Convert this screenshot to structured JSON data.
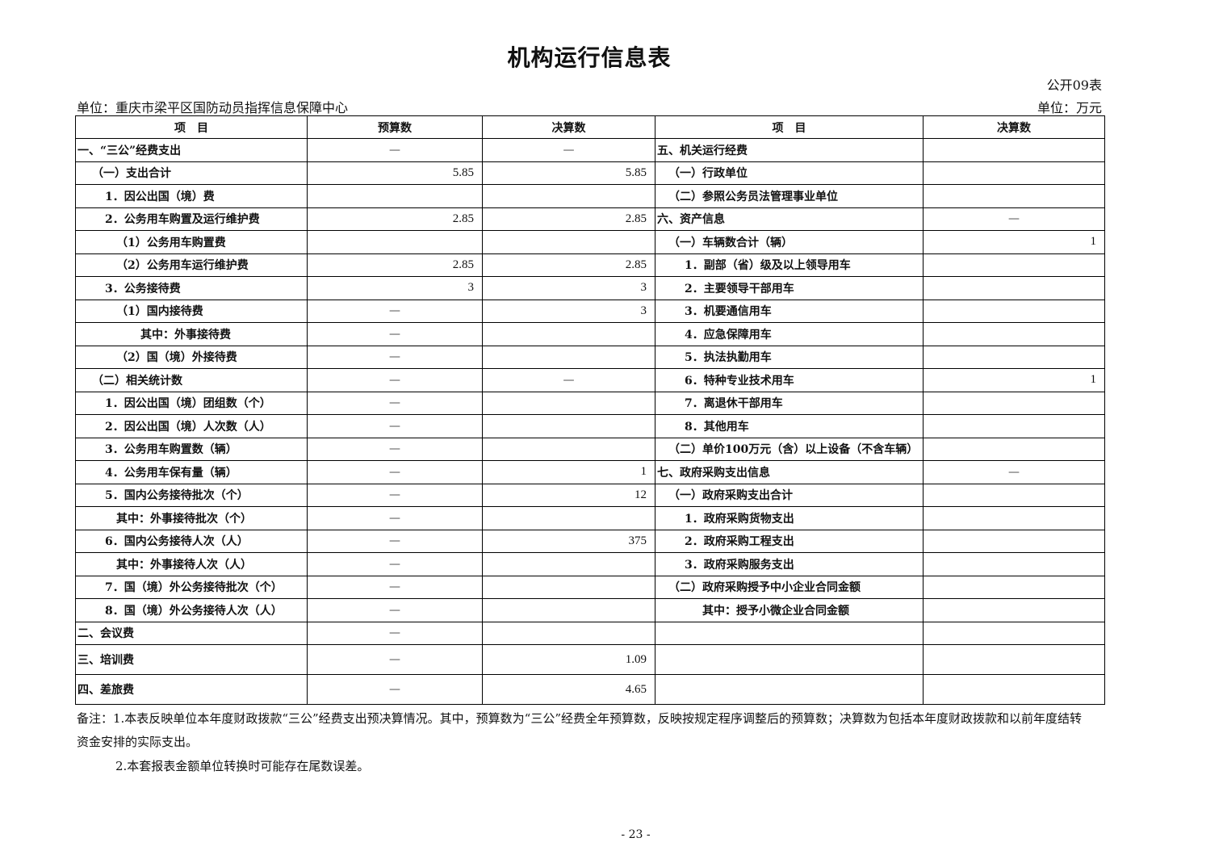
{
  "title": "机构运行信息表",
  "table_no": "公开09表",
  "unit_left": "单位：重庆市梁平区国防动员指挥信息保障中心",
  "unit_right": "单位：万元",
  "headers": [
    "项　目",
    "预算数",
    "决算数",
    "项　目",
    "决算数"
  ],
  "rows": [
    {
      "l": "一、“三公”经费支出",
      "ll": 0,
      "b": "—",
      "f": "—",
      "r": "五、机关运行经费",
      "rl": 0,
      "rf": ""
    },
    {
      "l": "（一）支出合计",
      "ll": 1,
      "b": "5.85",
      "f": "5.85",
      "r": "（一）行政单位",
      "rl": 1,
      "rf": ""
    },
    {
      "l": "1．因公出国（境）费",
      "ll": 2,
      "b": "",
      "f": "",
      "r": "（二）参照公务员法管理事业单位",
      "rl": 1,
      "rf": ""
    },
    {
      "l": "2．公务用车购置及运行维护费",
      "ll": 2,
      "b": "2.85",
      "f": "2.85",
      "r": "六、资产信息",
      "rl": 0,
      "rf": "—"
    },
    {
      "l": "（1）公务用车购置费",
      "ll": 3,
      "b": "",
      "f": "",
      "r": "（一）车辆数合计（辆）",
      "rl": 1,
      "rf": "1"
    },
    {
      "l": "（2）公务用车运行维护费",
      "ll": 3,
      "b": "2.85",
      "f": "2.85",
      "r": "1．副部（省）级及以上领导用车",
      "rl": 2,
      "rf": ""
    },
    {
      "l": "3．公务接待费",
      "ll": 2,
      "b": "3",
      "f": "3",
      "r": "2．主要领导干部用车",
      "rl": 2,
      "rf": ""
    },
    {
      "l": "（1）国内接待费",
      "ll": 3,
      "b": "—",
      "f": "3",
      "r": "3．机要通信用车",
      "rl": 2,
      "rf": ""
    },
    {
      "l": "其中：外事接待费",
      "ll": 4,
      "b": "—",
      "f": "",
      "r": "4．应急保障用车",
      "rl": 2,
      "rf": ""
    },
    {
      "l": "（2）国（境）外接待费",
      "ll": 3,
      "b": "—",
      "f": "",
      "r": "5．执法执勤用车",
      "rl": 2,
      "rf": ""
    },
    {
      "l": "（二）相关统计数",
      "ll": 1,
      "b": "—",
      "f": "—",
      "r": "6．特种专业技术用车",
      "rl": 2,
      "rf": "1"
    },
    {
      "l": "1．因公出国（境）团组数（个）",
      "ll": 2,
      "b": "—",
      "f": "",
      "r": "7．离退休干部用车",
      "rl": 2,
      "rf": ""
    },
    {
      "l": "2．因公出国（境）人次数（人）",
      "ll": 2,
      "b": "—",
      "f": "",
      "r": "8．其他用车",
      "rl": 2,
      "rf": ""
    },
    {
      "l": "3．公务用车购置数（辆）",
      "ll": 2,
      "b": "—",
      "f": "",
      "r": "（二）单价100万元（含）以上设备（不含车辆）",
      "rl": 1,
      "rf": ""
    },
    {
      "l": "4．公务用车保有量（辆）",
      "ll": 2,
      "b": "—",
      "f": "1",
      "r": "七、政府采购支出信息",
      "rl": 0,
      "rf": "—"
    },
    {
      "l": "5．国内公务接待批次（个）",
      "ll": 2,
      "b": "—",
      "f": "12",
      "r": "（一）政府采购支出合计",
      "rl": 1,
      "rf": ""
    },
    {
      "l": "其中：外事接待批次（个）",
      "ll": 3,
      "b": "—",
      "f": "",
      "r": "1．政府采购货物支出",
      "rl": 2,
      "rf": ""
    },
    {
      "l": "6．国内公务接待人次（人）",
      "ll": 2,
      "b": "—",
      "f": "375",
      "r": "2．政府采购工程支出",
      "rl": 2,
      "rf": ""
    },
    {
      "l": "其中：外事接待人次（人）",
      "ll": 3,
      "b": "—",
      "f": "",
      "r": "3．政府采购服务支出",
      "rl": 2,
      "rf": ""
    },
    {
      "l": "7．国（境）外公务接待批次（个）",
      "ll": 2,
      "b": "—",
      "f": "",
      "r": "（二）政府采购授予中小企业合同金额",
      "rl": 1,
      "rf": ""
    },
    {
      "l": "8．国（境）外公务接待人次（人）",
      "ll": 2,
      "b": "—",
      "f": "",
      "r": "其中：授予小微企业合同金额",
      "rl": 3,
      "rf": ""
    },
    {
      "l": "二、会议费",
      "ll": 0,
      "b": "—",
      "f": "",
      "r": "",
      "rl": 0,
      "rf": ""
    },
    {
      "l": "三、培训费",
      "ll": 0,
      "b": "—",
      "f": "1.09",
      "r": "",
      "rl": 0,
      "rf": ""
    },
    {
      "l": "四、差旅费",
      "ll": 0,
      "b": "—",
      "f": "4.65",
      "r": "",
      "rl": 0,
      "rf": ""
    }
  ],
  "notes": [
    "备注：1.本表反映单位本年度财政拨款“三公”经费支出预决算情况。其中，预算数为“三公”经费全年预算数，反映按规定程序调整后的预算数；决算数为包括本年度财政拨款和以前年度结转",
    "资金安排的实际支出。",
    "2.本套报表金额单位转换时可能存在尾数误差。"
  ],
  "page_number": "- 23 -"
}
